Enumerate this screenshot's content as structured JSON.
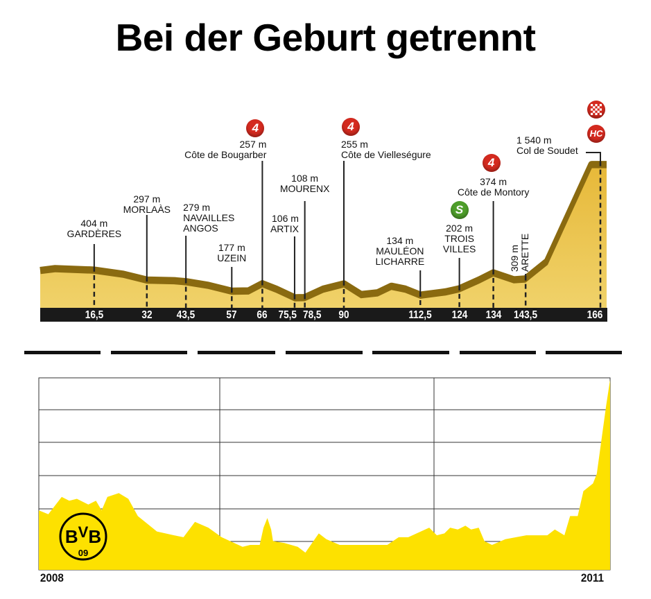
{
  "title": "Bei der Geburt getrennt",
  "colors": {
    "badge_red": "#d42a1f",
    "badge_green": "#4e9e2a",
    "profile_fill": "#e6c04a",
    "profile_edge": "#8a6a10",
    "bvb_yellow": "#fde100"
  },
  "chart_data": [
    {
      "type": "area",
      "xlabel": "",
      "ylabel": "",
      "x_unit": "km",
      "xlim": [
        0,
        166
      ],
      "km_ticks": [
        "16,5",
        "32",
        "43,5",
        "57",
        "66",
        "75,5",
        "78,5",
        "90",
        "112,5",
        "124",
        "134",
        "143,5",
        "166"
      ],
      "elevation_profile": {
        "km": [
          0,
          5,
          16.5,
          25,
          32,
          40,
          43.5,
          50,
          57,
          62,
          66,
          70,
          75.5,
          78.5,
          84,
          90,
          95,
          100,
          104,
          108,
          112.5,
          120,
          124,
          130,
          134,
          140,
          143.5,
          150,
          155,
          160,
          163,
          166
        ],
        "m": [
          400,
          420,
          404,
          360,
          297,
          290,
          279,
          240,
          177,
          180,
          257,
          200,
          106,
          108,
          200,
          255,
          140,
          160,
          230,
          200,
          134,
          170,
          202,
          300,
          374,
          300,
          309,
          500,
          900,
          1300,
          1540,
          1540
        ]
      },
      "markers": [
        {
          "km": 16.5,
          "km_label": "16,5",
          "elevation": "404 m",
          "name": [
            "GARDÈRES"
          ],
          "badge": ""
        },
        {
          "km": 32,
          "km_label": "32",
          "elevation": "297 m",
          "name": [
            "MORLAÀS"
          ],
          "badge": ""
        },
        {
          "km": 43.5,
          "km_label": "43,5",
          "elevation": "279 m",
          "name": [
            "NAVAILLES",
            "ANGOS"
          ],
          "badge": ""
        },
        {
          "km": 57,
          "km_label": "57",
          "elevation": "177 m",
          "name": [
            "UZEIN"
          ],
          "badge": ""
        },
        {
          "km": 66,
          "km_label": "66",
          "elevation": "257 m",
          "name": [
            "Côte de Bougarber"
          ],
          "badge": "4"
        },
        {
          "km": 75.5,
          "km_label": "75,5",
          "elevation": "106 m",
          "name": [
            "ARTIX"
          ],
          "badge": ""
        },
        {
          "km": 78.5,
          "km_label": "78,5",
          "elevation": "108 m",
          "name": [
            "MOURENX"
          ],
          "badge": ""
        },
        {
          "km": 90,
          "km_label": "90",
          "elevation": "255 m",
          "name": [
            "Côte de Vielleségure"
          ],
          "badge": "4"
        },
        {
          "km": 112.5,
          "km_label": "112,5",
          "elevation": "134 m",
          "name": [
            "MAULÉON",
            "LICHARRE"
          ],
          "badge": ""
        },
        {
          "km": 124,
          "km_label": "124",
          "elevation": "202 m",
          "name": [
            "TROIS",
            "VILLES"
          ],
          "badge": "S"
        },
        {
          "km": 134,
          "km_label": "134",
          "elevation": "374 m",
          "name": [
            "Côte de Montory"
          ],
          "badge": "4"
        },
        {
          "km": 143.5,
          "km_label": "143,5",
          "elevation": "309 m",
          "name": [
            "ARETTE"
          ],
          "badge": ""
        },
        {
          "km": 166,
          "km_label": "166",
          "elevation": "1 540 m",
          "name": [
            "Col de Soudet"
          ],
          "badge": "HC",
          "finish": true
        }
      ]
    },
    {
      "type": "area",
      "xlabel": "",
      "ylabel": "",
      "x_tick_labels": [
        "2008",
        "2011"
      ],
      "xlim": [
        2008,
        2011
      ],
      "ylim": [
        0,
        100
      ],
      "grid": true,
      "logo": "BVB 09",
      "x": [
        2008.0,
        2008.05,
        2008.12,
        2008.16,
        2008.2,
        2008.26,
        2008.3,
        2008.33,
        2008.36,
        2008.42,
        2008.47,
        2008.52,
        2008.62,
        2008.71,
        2008.76,
        2008.82,
        2008.89,
        2008.96,
        2009.07,
        2009.11,
        2009.16,
        2009.18,
        2009.2,
        2009.22,
        2009.23,
        2009.29,
        2009.36,
        2009.4,
        2009.47,
        2009.51,
        2009.58,
        2009.73,
        2009.83,
        2009.89,
        2009.94,
        2010.05,
        2010.09,
        2010.13,
        2010.16,
        2010.2,
        2010.24,
        2010.27,
        2010.31,
        2010.34,
        2010.38,
        2010.45,
        2010.56,
        2010.67,
        2010.71,
        2010.76,
        2010.79,
        2010.83,
        2010.86,
        2010.91,
        2010.93,
        2010.98,
        2011.0
      ],
      "values": [
        31,
        29,
        38,
        36,
        37,
        34,
        36,
        31,
        38,
        40,
        37,
        28,
        20,
        18,
        17,
        25,
        22,
        17,
        12,
        13,
        13,
        22,
        27,
        21,
        15,
        14,
        12,
        9,
        19,
        16,
        13,
        13,
        13,
        17,
        17,
        22,
        18,
        19,
        22,
        21,
        23,
        21,
        22,
        15,
        13,
        16,
        18,
        18,
        21,
        18,
        28,
        28,
        41,
        45,
        50,
        86,
        99
      ]
    }
  ]
}
